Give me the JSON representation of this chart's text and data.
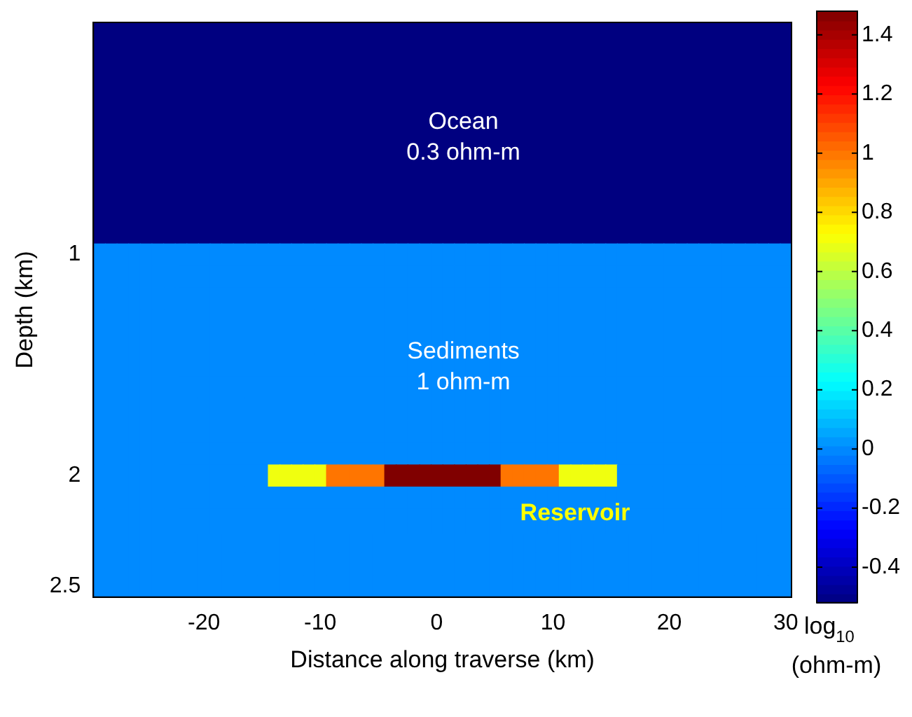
{
  "chart_data": {
    "type": "heatmap",
    "xlabel": "Distance along traverse (km)",
    "ylabel": "Depth (km)",
    "clabel": "log$_{10}$ (ohm-m)",
    "categories": [
      null,
      null,
      null,
      null,
      null,
      null,
      null,
      null,
      null,
      "-20",
      null,
      null,
      null,
      null,
      null,
      null,
      null,
      null,
      null,
      "-10",
      null,
      null,
      null,
      null,
      null,
      null,
      null,
      null,
      null,
      "0",
      null,
      null,
      null,
      null,
      null,
      null,
      null,
      null,
      null,
      "10",
      null,
      null,
      null,
      null,
      null,
      null,
      null,
      null,
      null,
      "20",
      null,
      null,
      null,
      null,
      null,
      null,
      null,
      null,
      null,
      "30"
    ],
    "y_categories": [
      null,
      null,
      null,
      null,
      null,
      null,
      null,
      null,
      null,
      null,
      "1",
      null,
      null,
      null,
      null,
      null,
      null,
      null,
      null,
      null,
      "2",
      null,
      null,
      null,
      null,
      "2.5"
    ],
    "clim": [
      -0.52,
      1.48
    ],
    "cticks": [
      -0.4,
      -0.2,
      0,
      0.2,
      0.4,
      0.6,
      0.8,
      1,
      1.2,
      1.4
    ],
    "cells": [
      [
        -0.52,
        -0.52,
        -0.52,
        -0.52,
        -0.52,
        -0.52,
        -0.52,
        -0.52,
        -0.52,
        -0.52,
        -0.52,
        -0.52,
        -0.52,
        -0.52,
        -0.52,
        -0.52,
        -0.52,
        -0.52,
        -0.52,
        -0.52,
        -0.52,
        -0.52,
        -0.52,
        -0.52,
        -0.52,
        -0.52,
        -0.52,
        -0.52,
        -0.52,
        -0.52,
        -0.52,
        -0.52,
        -0.52,
        -0.52,
        -0.52,
        -0.52,
        -0.52,
        -0.52,
        -0.52,
        -0.52,
        -0.52,
        -0.52,
        -0.52,
        -0.52,
        -0.52,
        -0.52,
        -0.52,
        -0.52,
        -0.52,
        -0.52,
        -0.52,
        -0.52,
        -0.52,
        -0.52,
        -0.52,
        -0.52,
        -0.52,
        -0.52,
        -0.52,
        -0.52
      ],
      [
        -0.52,
        -0.52,
        -0.52,
        -0.52,
        -0.52,
        -0.52,
        -0.52,
        -0.52,
        -0.52,
        -0.52,
        -0.52,
        -0.52,
        -0.52,
        -0.52,
        -0.52,
        -0.52,
        -0.52,
        -0.52,
        -0.52,
        -0.52,
        -0.52,
        -0.52,
        -0.52,
        -0.52,
        -0.52,
        -0.52,
        -0.52,
        -0.52,
        -0.52,
        -0.52,
        -0.52,
        -0.52,
        -0.52,
        -0.52,
        -0.52,
        -0.52,
        -0.52,
        -0.52,
        -0.52,
        -0.52,
        -0.52,
        -0.52,
        -0.52,
        -0.52,
        -0.52,
        -0.52,
        -0.52,
        -0.52,
        -0.52,
        -0.52,
        -0.52,
        -0.52,
        -0.52,
        -0.52,
        -0.52,
        -0.52,
        -0.52,
        -0.52,
        -0.52,
        -0.52
      ],
      [
        -0.52,
        -0.52,
        -0.52,
        -0.52,
        -0.52,
        -0.52,
        -0.52,
        -0.52,
        -0.52,
        -0.52,
        -0.52,
        -0.52,
        -0.52,
        -0.52,
        -0.52,
        -0.52,
        -0.52,
        -0.52,
        -0.52,
        -0.52,
        -0.52,
        -0.52,
        -0.52,
        -0.52,
        -0.52,
        -0.52,
        -0.52,
        -0.52,
        -0.52,
        -0.52,
        -0.52,
        -0.52,
        -0.52,
        -0.52,
        -0.52,
        -0.52,
        -0.52,
        -0.52,
        -0.52,
        -0.52,
        -0.52,
        -0.52,
        -0.52,
        -0.52,
        -0.52,
        -0.52,
        -0.52,
        -0.52,
        -0.52,
        -0.52,
        -0.52,
        -0.52,
        -0.52,
        -0.52,
        -0.52,
        -0.52,
        -0.52,
        -0.52,
        -0.52,
        -0.52
      ],
      [
        -0.52,
        -0.52,
        -0.52,
        -0.52,
        -0.52,
        -0.52,
        -0.52,
        -0.52,
        -0.52,
        -0.52,
        -0.52,
        -0.52,
        -0.52,
        -0.52,
        -0.52,
        -0.52,
        -0.52,
        -0.52,
        -0.52,
        -0.52,
        -0.52,
        -0.52,
        -0.52,
        -0.52,
        -0.52,
        -0.52,
        -0.52,
        -0.52,
        -0.52,
        -0.52,
        -0.52,
        -0.52,
        -0.52,
        -0.52,
        -0.52,
        -0.52,
        -0.52,
        -0.52,
        -0.52,
        -0.52,
        -0.52,
        -0.52,
        -0.52,
        -0.52,
        -0.52,
        -0.52,
        -0.52,
        -0.52,
        -0.52,
        -0.52,
        -0.52,
        -0.52,
        -0.52,
        -0.52,
        -0.52,
        -0.52,
        -0.52,
        -0.52,
        -0.52,
        -0.52
      ],
      [
        -0.52,
        -0.52,
        -0.52,
        -0.52,
        -0.52,
        -0.52,
        -0.52,
        -0.52,
        -0.52,
        -0.52,
        -0.52,
        -0.52,
        -0.52,
        -0.52,
        -0.52,
        -0.52,
        -0.52,
        -0.52,
        -0.52,
        -0.52,
        -0.52,
        -0.52,
        -0.52,
        -0.52,
        -0.52,
        -0.52,
        -0.52,
        -0.52,
        -0.52,
        -0.52,
        -0.52,
        -0.52,
        -0.52,
        -0.52,
        -0.52,
        -0.52,
        -0.52,
        -0.52,
        -0.52,
        -0.52,
        -0.52,
        -0.52,
        -0.52,
        -0.52,
        -0.52,
        -0.52,
        -0.52,
        -0.52,
        -0.52,
        -0.52,
        -0.52,
        -0.52,
        -0.52,
        -0.52,
        -0.52,
        -0.52,
        -0.52,
        -0.52,
        -0.52,
        -0.52
      ],
      [
        -0.52,
        -0.52,
        -0.52,
        -0.52,
        -0.52,
        -0.52,
        -0.52,
        -0.52,
        -0.52,
        -0.52,
        -0.52,
        -0.52,
        -0.52,
        -0.52,
        -0.52,
        -0.52,
        -0.52,
        -0.52,
        -0.52,
        -0.52,
        -0.52,
        -0.52,
        -0.52,
        -0.52,
        -0.52,
        -0.52,
        -0.52,
        -0.52,
        -0.52,
        -0.52,
        -0.52,
        -0.52,
        -0.52,
        -0.52,
        -0.52,
        -0.52,
        -0.52,
        -0.52,
        -0.52,
        -0.52,
        -0.52,
        -0.52,
        -0.52,
        -0.52,
        -0.52,
        -0.52,
        -0.52,
        -0.52,
        -0.52,
        -0.52,
        -0.52,
        -0.52,
        -0.52,
        -0.52,
        -0.52,
        -0.52,
        -0.52,
        -0.52,
        -0.52,
        -0.52
      ],
      [
        -0.52,
        -0.52,
        -0.52,
        -0.52,
        -0.52,
        -0.52,
        -0.52,
        -0.52,
        -0.52,
        -0.52,
        -0.52,
        -0.52,
        -0.52,
        -0.52,
        -0.52,
        -0.52,
        -0.52,
        -0.52,
        -0.52,
        -0.52,
        -0.52,
        -0.52,
        -0.52,
        -0.52,
        -0.52,
        -0.52,
        -0.52,
        -0.52,
        -0.52,
        -0.52,
        -0.52,
        -0.52,
        -0.52,
        -0.52,
        -0.52,
        -0.52,
        -0.52,
        -0.52,
        -0.52,
        -0.52,
        -0.52,
        -0.52,
        -0.52,
        -0.52,
        -0.52,
        -0.52,
        -0.52,
        -0.52,
        -0.52,
        -0.52,
        -0.52,
        -0.52,
        -0.52,
        -0.52,
        -0.52,
        -0.52,
        -0.52,
        -0.52,
        -0.52,
        -0.52
      ],
      [
        -0.52,
        -0.52,
        -0.52,
        -0.52,
        -0.52,
        -0.52,
        -0.52,
        -0.52,
        -0.52,
        -0.52,
        -0.52,
        -0.52,
        -0.52,
        -0.52,
        -0.52,
        -0.52,
        -0.52,
        -0.52,
        -0.52,
        -0.52,
        -0.52,
        -0.52,
        -0.52,
        -0.52,
        -0.52,
        -0.52,
        -0.52,
        -0.52,
        -0.52,
        -0.52,
        -0.52,
        -0.52,
        -0.52,
        -0.52,
        -0.52,
        -0.52,
        -0.52,
        -0.52,
        -0.52,
        -0.52,
        -0.52,
        -0.52,
        -0.52,
        -0.52,
        -0.52,
        -0.52,
        -0.52,
        -0.52,
        -0.52,
        -0.52,
        -0.52,
        -0.52,
        -0.52,
        -0.52,
        -0.52,
        -0.52,
        -0.52,
        -0.52,
        -0.52,
        -0.52
      ],
      [
        -0.52,
        -0.52,
        -0.52,
        -0.52,
        -0.52,
        -0.52,
        -0.52,
        -0.52,
        -0.52,
        -0.52,
        -0.52,
        -0.52,
        -0.52,
        -0.52,
        -0.52,
        -0.52,
        -0.52,
        -0.52,
        -0.52,
        -0.52,
        -0.52,
        -0.52,
        -0.52,
        -0.52,
        -0.52,
        -0.52,
        -0.52,
        -0.52,
        -0.52,
        -0.52,
        -0.52,
        -0.52,
        -0.52,
        -0.52,
        -0.52,
        -0.52,
        -0.52,
        -0.52,
        -0.52,
        -0.52,
        -0.52,
        -0.52,
        -0.52,
        -0.52,
        -0.52,
        -0.52,
        -0.52,
        -0.52,
        -0.52,
        -0.52,
        -0.52,
        -0.52,
        -0.52,
        -0.52,
        -0.52,
        -0.52,
        -0.52,
        -0.52,
        -0.52,
        -0.52
      ],
      [
        -0.52,
        -0.52,
        -0.52,
        -0.52,
        -0.52,
        -0.52,
        -0.52,
        -0.52,
        -0.52,
        -0.52,
        -0.52,
        -0.52,
        -0.52,
        -0.52,
        -0.52,
        -0.52,
        -0.52,
        -0.52,
        -0.52,
        -0.52,
        -0.52,
        -0.52,
        -0.52,
        -0.52,
        -0.52,
        -0.52,
        -0.52,
        -0.52,
        -0.52,
        -0.52,
        -0.52,
        -0.52,
        -0.52,
        -0.52,
        -0.52,
        -0.52,
        -0.52,
        -0.52,
        -0.52,
        -0.52,
        -0.52,
        -0.52,
        -0.52,
        -0.52,
        -0.52,
        -0.52,
        -0.52,
        -0.52,
        -0.52,
        -0.52,
        -0.52,
        -0.52,
        -0.52,
        -0.52,
        -0.52,
        -0.52,
        -0.52,
        -0.52,
        -0.52,
        -0.52
      ],
      [
        0,
        0,
        0,
        0,
        0,
        0,
        0,
        0,
        0,
        0,
        0,
        0,
        0,
        0,
        0,
        0,
        0,
        0,
        0,
        0,
        0,
        0,
        0,
        0,
        0,
        0,
        0,
        0,
        0,
        0,
        0,
        0,
        0,
        0,
        0,
        0,
        0,
        0,
        0,
        0,
        0,
        0,
        0,
        0,
        0,
        0,
        0,
        0,
        0,
        0,
        0,
        0,
        0,
        0,
        0,
        0,
        0,
        0,
        0,
        0
      ],
      [
        0,
        0,
        0,
        0,
        0,
        0,
        0,
        0,
        0,
        0,
        0,
        0,
        0,
        0,
        0,
        0,
        0,
        0,
        0,
        0,
        0,
        0,
        0,
        0,
        0,
        0,
        0,
        0,
        0,
        0,
        0,
        0,
        0,
        0,
        0,
        0,
        0,
        0,
        0,
        0,
        0,
        0,
        0,
        0,
        0,
        0,
        0,
        0,
        0,
        0,
        0,
        0,
        0,
        0,
        0,
        0,
        0,
        0,
        0,
        0
      ],
      [
        0,
        0,
        0,
        0,
        0,
        0,
        0,
        0,
        0,
        0,
        0,
        0,
        0,
        0,
        0,
        0,
        0,
        0,
        0,
        0,
        0,
        0,
        0,
        0,
        0,
        0,
        0,
        0,
        0,
        0,
        0,
        0,
        0,
        0,
        0,
        0,
        0,
        0,
        0,
        0,
        0,
        0,
        0,
        0,
        0,
        0,
        0,
        0,
        0,
        0,
        0,
        0,
        0,
        0,
        0,
        0,
        0,
        0,
        0,
        0
      ],
      [
        0,
        0,
        0,
        0,
        0,
        0,
        0,
        0,
        0,
        0,
        0,
        0,
        0,
        0,
        0,
        0,
        0,
        0,
        0,
        0,
        0,
        0,
        0,
        0,
        0,
        0,
        0,
        0,
        0,
        0,
        0,
        0,
        0,
        0,
        0,
        0,
        0,
        0,
        0,
        0,
        0,
        0,
        0,
        0,
        0,
        0,
        0,
        0,
        0,
        0,
        0,
        0,
        0,
        0,
        0,
        0,
        0,
        0,
        0,
        0
      ],
      [
        0,
        0,
        0,
        0,
        0,
        0,
        0,
        0,
        0,
        0,
        0,
        0,
        0,
        0,
        0,
        0,
        0,
        0,
        0,
        0,
        0,
        0,
        0,
        0,
        0,
        0,
        0,
        0,
        0,
        0,
        0,
        0,
        0,
        0,
        0,
        0,
        0,
        0,
        0,
        0,
        0,
        0,
        0,
        0,
        0,
        0,
        0,
        0,
        0,
        0,
        0,
        0,
        0,
        0,
        0,
        0,
        0,
        0,
        0,
        0
      ],
      [
        0,
        0,
        0,
        0,
        0,
        0,
        0,
        0,
        0,
        0,
        0,
        0,
        0,
        0,
        0,
        0,
        0,
        0,
        0,
        0,
        0,
        0,
        0,
        0,
        0,
        0,
        0,
        0,
        0,
        0,
        0,
        0,
        0,
        0,
        0,
        0,
        0,
        0,
        0,
        0,
        0,
        0,
        0,
        0,
        0,
        0,
        0,
        0,
        0,
        0,
        0,
        0,
        0,
        0,
        0,
        0,
        0,
        0,
        0,
        0
      ],
      [
        0,
        0,
        0,
        0,
        0,
        0,
        0,
        0,
        0,
        0,
        0,
        0,
        0,
        0,
        0,
        0,
        0,
        0,
        0,
        0,
        0,
        0,
        0,
        0,
        0,
        0,
        0,
        0,
        0,
        0,
        0,
        0,
        0,
        0,
        0,
        0,
        0,
        0,
        0,
        0,
        0,
        0,
        0,
        0,
        0,
        0,
        0,
        0,
        0,
        0,
        0,
        0,
        0,
        0,
        0,
        0,
        0,
        0,
        0,
        0
      ],
      [
        0,
        0,
        0,
        0,
        0,
        0,
        0,
        0,
        0,
        0,
        0,
        0,
        0,
        0,
        0,
        0,
        0,
        0,
        0,
        0,
        0,
        0,
        0,
        0,
        0,
        0,
        0,
        0,
        0,
        0,
        0,
        0,
        0,
        0,
        0,
        0,
        0,
        0,
        0,
        0,
        0,
        0,
        0,
        0,
        0,
        0,
        0,
        0,
        0,
        0,
        0,
        0,
        0,
        0,
        0,
        0,
        0,
        0,
        0,
        0
      ],
      [
        0,
        0,
        0,
        0,
        0,
        0,
        0,
        0,
        0,
        0,
        0,
        0,
        0,
        0,
        0,
        0,
        0,
        0,
        0,
        0,
        0,
        0,
        0,
        0,
        0,
        0,
        0,
        0,
        0,
        0,
        0,
        0,
        0,
        0,
        0,
        0,
        0,
        0,
        0,
        0,
        0,
        0,
        0,
        0,
        0,
        0,
        0,
        0,
        0,
        0,
        0,
        0,
        0,
        0,
        0,
        0,
        0,
        0,
        0,
        0
      ],
      [
        0,
        0,
        0,
        0,
        0,
        0,
        0,
        0,
        0,
        0,
        0,
        0,
        0,
        0,
        0,
        0,
        0,
        0,
        0,
        0,
        0,
        0,
        0,
        0,
        0,
        0,
        0,
        0,
        0,
        0,
        0,
        0,
        0,
        0,
        0,
        0,
        0,
        0,
        0,
        0,
        0,
        0,
        0,
        0,
        0,
        0,
        0,
        0,
        0,
        0,
        0,
        0,
        0,
        0,
        0,
        0,
        0,
        0,
        0,
        0
      ],
      [
        0,
        0,
        0,
        0,
        0,
        0,
        0,
        0,
        0,
        0,
        0,
        0,
        0,
        0,
        0,
        0.7,
        0.7,
        0.7,
        0.7,
        0.7,
        1,
        1,
        1,
        1,
        1,
        1.48,
        1.48,
        1.48,
        1.48,
        1.48,
        1.48,
        1.48,
        1.48,
        1.48,
        1.48,
        1,
        1,
        1,
        1,
        1,
        0.7,
        0.7,
        0.7,
        0.7,
        0.7,
        0,
        0,
        0,
        0,
        0,
        0,
        0,
        0,
        0,
        0,
        0,
        0,
        0,
        0,
        0
      ],
      [
        0,
        0,
        0,
        0,
        0,
        0,
        0,
        0,
        0,
        0,
        0,
        0,
        0,
        0,
        0,
        0,
        0,
        0,
        0,
        0,
        0,
        0,
        0,
        0,
        0,
        0,
        0,
        0,
        0,
        0,
        0,
        0,
        0,
        0,
        0,
        0,
        0,
        0,
        0,
        0,
        0,
        0,
        0,
        0,
        0,
        0,
        0,
        0,
        0,
        0,
        0,
        0,
        0,
        0,
        0,
        0,
        0,
        0,
        0,
        0
      ],
      [
        0,
        0,
        0,
        0,
        0,
        0,
        0,
        0,
        0,
        0,
        0,
        0,
        0,
        0,
        0,
        0,
        0,
        0,
        0,
        0,
        0,
        0,
        0,
        0,
        0,
        0,
        0,
        0,
        0,
        0,
        0,
        0,
        0,
        0,
        0,
        0,
        0,
        0,
        0,
        0,
        0,
        0,
        0,
        0,
        0,
        0,
        0,
        0,
        0,
        0,
        0,
        0,
        0,
        0,
        0,
        0,
        0,
        0,
        0,
        0
      ],
      [
        0,
        0,
        0,
        0,
        0,
        0,
        0,
        0,
        0,
        0,
        0,
        0,
        0,
        0,
        0,
        0,
        0,
        0,
        0,
        0,
        0,
        0,
        0,
        0,
        0,
        0,
        0,
        0,
        0,
        0,
        0,
        0,
        0,
        0,
        0,
        0,
        0,
        0,
        0,
        0,
        0,
        0,
        0,
        0,
        0,
        0,
        0,
        0,
        0,
        0,
        0,
        0,
        0,
        0,
        0,
        0,
        0,
        0,
        0,
        0
      ],
      [
        0,
        0,
        0,
        0,
        0,
        0,
        0,
        0,
        0,
        0,
        0,
        0,
        0,
        0,
        0,
        0,
        0,
        0,
        0,
        0,
        0,
        0,
        0,
        0,
        0,
        0,
        0,
        0,
        0,
        0,
        0,
        0,
        0,
        0,
        0,
        0,
        0,
        0,
        0,
        0,
        0,
        0,
        0,
        0,
        0,
        0,
        0,
        0,
        0,
        0,
        0,
        0,
        0,
        0,
        0,
        0,
        0,
        0,
        0,
        0
      ],
      [
        0,
        0,
        0,
        0,
        0,
        0,
        0,
        0,
        0,
        0,
        0,
        0,
        0,
        0,
        0,
        0,
        0,
        0,
        0,
        0,
        0,
        0,
        0,
        0,
        0,
        0,
        0,
        0,
        0,
        0,
        0,
        0,
        0,
        0,
        0,
        0,
        0,
        0,
        0,
        0,
        0,
        0,
        0,
        0,
        0,
        0,
        0,
        0,
        0,
        0,
        0,
        0,
        0,
        0,
        0,
        0,
        0,
        0,
        0,
        0
      ]
    ],
    "annotations": [
      "Ocean\n0.3 ohm-m",
      "Sediments\n1 ohm-m",
      "Reservoir"
    ]
  }
}
